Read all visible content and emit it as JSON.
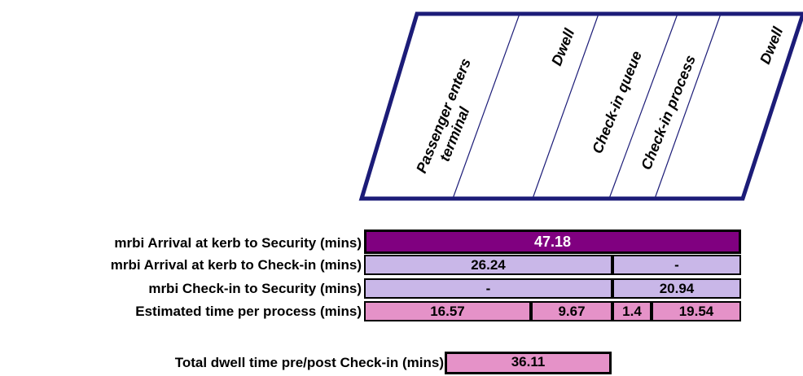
{
  "header": {
    "columns": [
      {
        "line1": "Passenger enters",
        "line2": "terminal"
      },
      {
        "line1": "Dwell",
        "line2": ""
      },
      {
        "line1": "Check-in queue",
        "line2": ""
      },
      {
        "line1": "Check-in process",
        "line2": ""
      },
      {
        "line1": "Dwell",
        "line2": ""
      }
    ]
  },
  "rows": {
    "arrival_to_security": {
      "label": "mrbi Arrival at kerb to Security (mins)",
      "value": "47.18"
    },
    "arrival_to_checkin": {
      "label": "mrbi Arrival at kerb to Check-in (mins)",
      "value": "26.24",
      "value2": "-"
    },
    "checkin_to_security": {
      "label": "mrbi Check-in to Security (mins)",
      "value": "-",
      "value2": "20.94"
    },
    "per_process": {
      "label": "Estimated time per process (mins)",
      "values": [
        "16.57",
        "9.67",
        "1.4",
        "19.54"
      ]
    }
  },
  "total": {
    "label": "Total dwell time pre/post Check-in (mins)",
    "value": "36.11"
  },
  "colors": {
    "purple": "#800080",
    "lavender": "#c9b7e8",
    "pink": "#e592c8",
    "navy": "#1c1c78"
  }
}
